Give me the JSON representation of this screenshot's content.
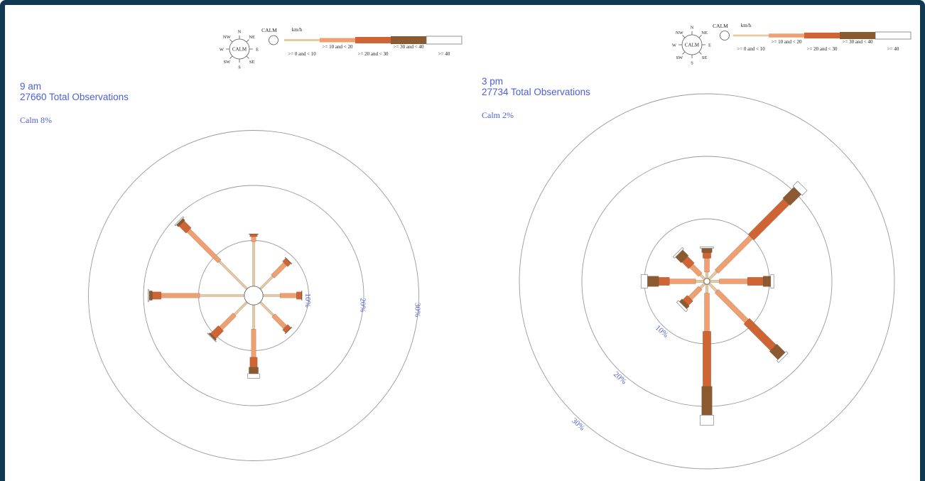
{
  "colors": {
    "frame": "#0f3a52",
    "label": "#4a5fd8",
    "ring": "#9a9a9a",
    "bins": [
      "#e9c9a0",
      "#f0a070",
      "#cf6534",
      "#8c5a30",
      "#ffffff"
    ]
  },
  "legend": {
    "compass": {
      "center": "CALM",
      "N": "N",
      "NE": "NE",
      "E": "E",
      "SE": "SE",
      "S": "S",
      "SW": "SW",
      "W": "W",
      "NW": "NW"
    },
    "calm_label": "CALM",
    "unit": "km/h",
    "bins": [
      ">= 0 and < 10",
      ">= 10 and < 20",
      ">= 20 and < 30",
      ">= 30 and < 40",
      ">= 40"
    ]
  },
  "chart_data": [
    {
      "type": "wind-rose",
      "title": "9 am",
      "subtitle": "27660 Total Observations",
      "calm": "Calm 8%",
      "calm_value": 8,
      "unit": "km/h",
      "ring_values": [
        10,
        20,
        30
      ],
      "ring_labels": [
        "10%",
        "20%",
        "30%"
      ],
      "directions": [
        "N",
        "NE",
        "E",
        "SE",
        "S",
        "SW",
        "W",
        "NW"
      ],
      "bins": [
        ">= 0 and < 10",
        ">= 10 and < 20",
        ">= 20 and < 30",
        ">= 30 and < 40",
        ">= 40"
      ],
      "cumulative_percent": [
        [
          9.8,
          10.7,
          11.1,
          11.2,
          11.2
        ],
        [
          4.9,
          8.1,
          8.9,
          9.0,
          9.0
        ],
        [
          4.8,
          7.8,
          8.7,
          8.8,
          8.8
        ],
        [
          5.1,
          8.1,
          8.9,
          9.0,
          9.0
        ],
        [
          6.1,
          11.2,
          13.0,
          14.2,
          15.0
        ],
        [
          4.9,
          8.4,
          10.4,
          10.7,
          10.8
        ],
        [
          9.8,
          16.8,
          18.4,
          19.0,
          19.2
        ],
        [
          8.8,
          16.7,
          18.5,
          19.0,
          19.2
        ]
      ]
    },
    {
      "type": "wind-rose",
      "title": "3 pm",
      "subtitle": "27734 Total Observations",
      "calm": "Calm 2%",
      "calm_value": 2,
      "unit": "km/h",
      "ring_values": [
        10,
        20,
        30
      ],
      "ring_labels": [
        "10%",
        "20%",
        "30%"
      ],
      "directions": [
        "N",
        "NE",
        "E",
        "SE",
        "S",
        "SW",
        "W",
        "NW"
      ],
      "bins": [
        ">= 0 and < 10",
        ">= 10 and < 20",
        ">= 20 and < 30",
        ">= 30 and < 40",
        ">= 40"
      ],
      "cumulative_percent": [
        [
          1.5,
          3.7,
          4.6,
          5.3,
          5.5
        ],
        [
          2.2,
          10.0,
          18.0,
          20.5,
          21.6
        ],
        [
          2.0,
          6.5,
          9.0,
          10.2,
          10.7
        ],
        [
          2.2,
          9.0,
          15.0,
          16.9,
          17.3
        ],
        [
          1.9,
          8.0,
          16.8,
          21.4,
          23.0
        ],
        [
          1.5,
          3.8,
          4.8,
          5.4,
          5.8
        ],
        [
          1.8,
          6.0,
          7.7,
          9.5,
          10.5
        ],
        [
          1.5,
          3.5,
          5.0,
          6.3,
          6.6
        ]
      ]
    }
  ]
}
